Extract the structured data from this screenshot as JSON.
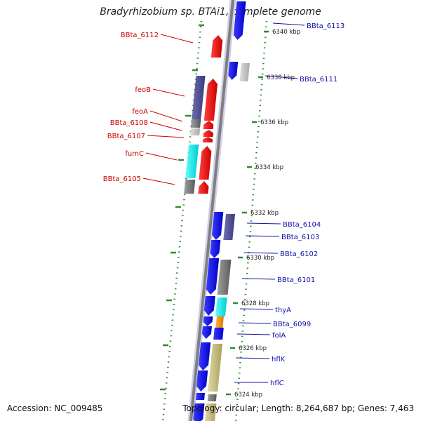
{
  "title": "Bradyrhizobium sp. BTAi1, complete genome",
  "accession": "Accession: NC_009485",
  "topology": "Topology: circular; Length: 8,264,687 bp; Genes: 7,463",
  "colors": {
    "backbone": "#7f7f7f",
    "ruler": "#2e8b2e",
    "left_label": "#cc0000",
    "right_label": "#1010aa",
    "tick_text": "#222222"
  },
  "ticks": [
    {
      "label": "6340 kbp"
    },
    {
      "label": "6338 kbp"
    },
    {
      "label": "6336 kbp"
    },
    {
      "label": "6334 kbp"
    },
    {
      "label": "6332 kbp"
    },
    {
      "label": "6330 kbp"
    },
    {
      "label": "6328 kbp"
    },
    {
      "label": "6326 kbp"
    },
    {
      "label": "6324 kbp"
    }
  ],
  "left_genes": [
    {
      "label": "BBta_6112"
    },
    {
      "label": "feoB"
    },
    {
      "label": "feoA"
    },
    {
      "label": "BBta_6108"
    },
    {
      "label": "BBta_6107"
    },
    {
      "label": "fumC"
    },
    {
      "label": "BBta_6105"
    }
  ],
  "right_genes": [
    {
      "label": "BBta_6113"
    },
    {
      "label": "BBta_6111"
    },
    {
      "label": "BBta_6104"
    },
    {
      "label": "BBta_6103"
    },
    {
      "label": "BBta_6102"
    },
    {
      "label": "BBta_6101"
    },
    {
      "label": "thyA"
    },
    {
      "label": "BBta_6099"
    },
    {
      "label": "folA"
    },
    {
      "label": "hflK"
    },
    {
      "label": "hflC"
    }
  ]
}
